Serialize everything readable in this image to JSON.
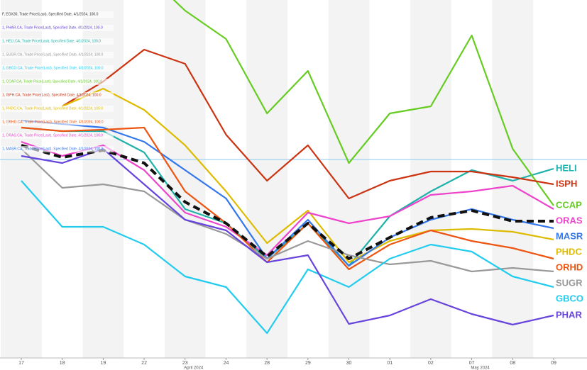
{
  "chart_data": {
    "type": "line",
    "categories": [
      "17",
      "18",
      "19",
      "22",
      "23",
      "24",
      "28",
      "29",
      "30",
      "01",
      "02",
      "07",
      "08",
      "09"
    ],
    "period_labels": [
      {
        "index": 4,
        "label": "April 2024"
      },
      {
        "index": 11,
        "label": "May 2024"
      }
    ],
    "ylim": [
      72,
      122.5
    ],
    "baseline": 100,
    "series": [
      {
        "name": "HELI",
        "color": "#20b2aa",
        "values": [
          104.5,
          104,
          104,
          101,
          93,
          91,
          86,
          91,
          85,
          92,
          95.5,
          98.5,
          97,
          98.7
        ]
      },
      {
        "name": "CCAP",
        "color": "#66cc22",
        "values": [
          null,
          null,
          null,
          126.5,
          121,
          117,
          106.5,
          112.5,
          99.5,
          106.5,
          107.5,
          117.5,
          101.5,
          93.5
        ]
      },
      {
        "name": "ISPH",
        "color": "#cc3311",
        "values": [
          null,
          107.5,
          111,
          115.5,
          113.5,
          103.5,
          97,
          102,
          94.5,
          97,
          98.3,
          98.3,
          97.5,
          96.5
        ]
      },
      {
        "name": "PHDC",
        "color": "#ddbb00",
        "values": [
          null,
          107.5,
          110,
          107,
          102,
          95.5,
          88.2,
          92.8,
          85.5,
          88.5,
          90,
          90.2,
          89.8,
          88.7
        ]
      },
      {
        "name": "ORAS",
        "color": "#ee44cc",
        "values": [
          102.5,
          100.5,
          102,
          98.5,
          92.5,
          90.5,
          86.5,
          92.5,
          91,
          92,
          95,
          95.5,
          96.3,
          93
        ]
      },
      {
        "name": "MASR",
        "color": "#3377ee",
        "values": [
          105.5,
          105,
          104.5,
          102.5,
          98.5,
          94.5,
          86,
          91.5,
          85,
          89,
          91.5,
          93,
          91.5,
          90.3
        ]
      },
      {
        "name": "ORHD",
        "color": "#ee5511",
        "values": [
          104.5,
          104,
          104.2,
          104.5,
          95.5,
          91,
          85.5,
          91,
          84.5,
          88,
          90,
          88.5,
          87.5,
          86
        ]
      },
      {
        "name": "SUGR",
        "color": "#999999",
        "values": [
          101.5,
          96,
          96.5,
          95.5,
          91.5,
          89.5,
          86,
          88.5,
          86.5,
          85.2,
          85.7,
          84.2,
          84.7,
          84.2
        ]
      },
      {
        "name": "GBCO",
        "color": "#22ccee",
        "values": [
          97,
          90.5,
          90.5,
          88,
          83.5,
          82,
          75.5,
          84.5,
          82,
          86,
          88,
          87,
          83.5,
          82
        ]
      },
      {
        "name": "PHAR",
        "color": "#6644dd",
        "values": [
          100.5,
          99.5,
          101.5,
          96.5,
          91.5,
          90,
          85.5,
          86.5,
          76.8,
          78,
          80.3,
          78.2,
          76.7,
          78
        ]
      },
      {
        "name": "EGX30",
        "color": "#111111",
        "dashed": true,
        "label": false,
        "values": [
          102,
          100.3,
          101.3,
          99.5,
          94,
          91,
          86.3,
          91,
          86,
          89,
          91.8,
          92.8,
          91.3,
          91.3
        ]
      }
    ],
    "annotations": [
      "F, EGX30, Trade Price(Last), Specified Date, 4/1/2024, 100.0",
      "1, PHAR.CA, Trade Price(Last), Specified Date, 4/1/2024, 100.0",
      "1, HELI.CA, Trade Price(Last), Specified Date, 4/1/2024, 100.0",
      "1, SUGR.CA, Trade Price(Last), Specified Date, 4/1/2024, 100.0",
      "1, GBCO.CA, Trade Price(Last), Specified Date, 4/1/2024, 100.0",
      "1, CCAP.CA, Trade Price(Last), Specified Date, 4/1/2024, 100.0",
      "1, ISPH.CA, Trade Price(Last), Specified Date, 4/1/2024, 100.0",
      "1, PHDC.CA, Trade Price(Last), Specified Date, 4/1/2024, 100.0",
      "1, ORHD.CA, Trade Price(Last), Specified Date, 4/1/2024, 100.0",
      "1, ORAS.CA, Trade Price(Last), Specified Date, 4/1/2024, 100.0",
      "1, MASR.CA, Trade Price(Last), Specified Date, 4/1/2024, 100.0"
    ]
  }
}
